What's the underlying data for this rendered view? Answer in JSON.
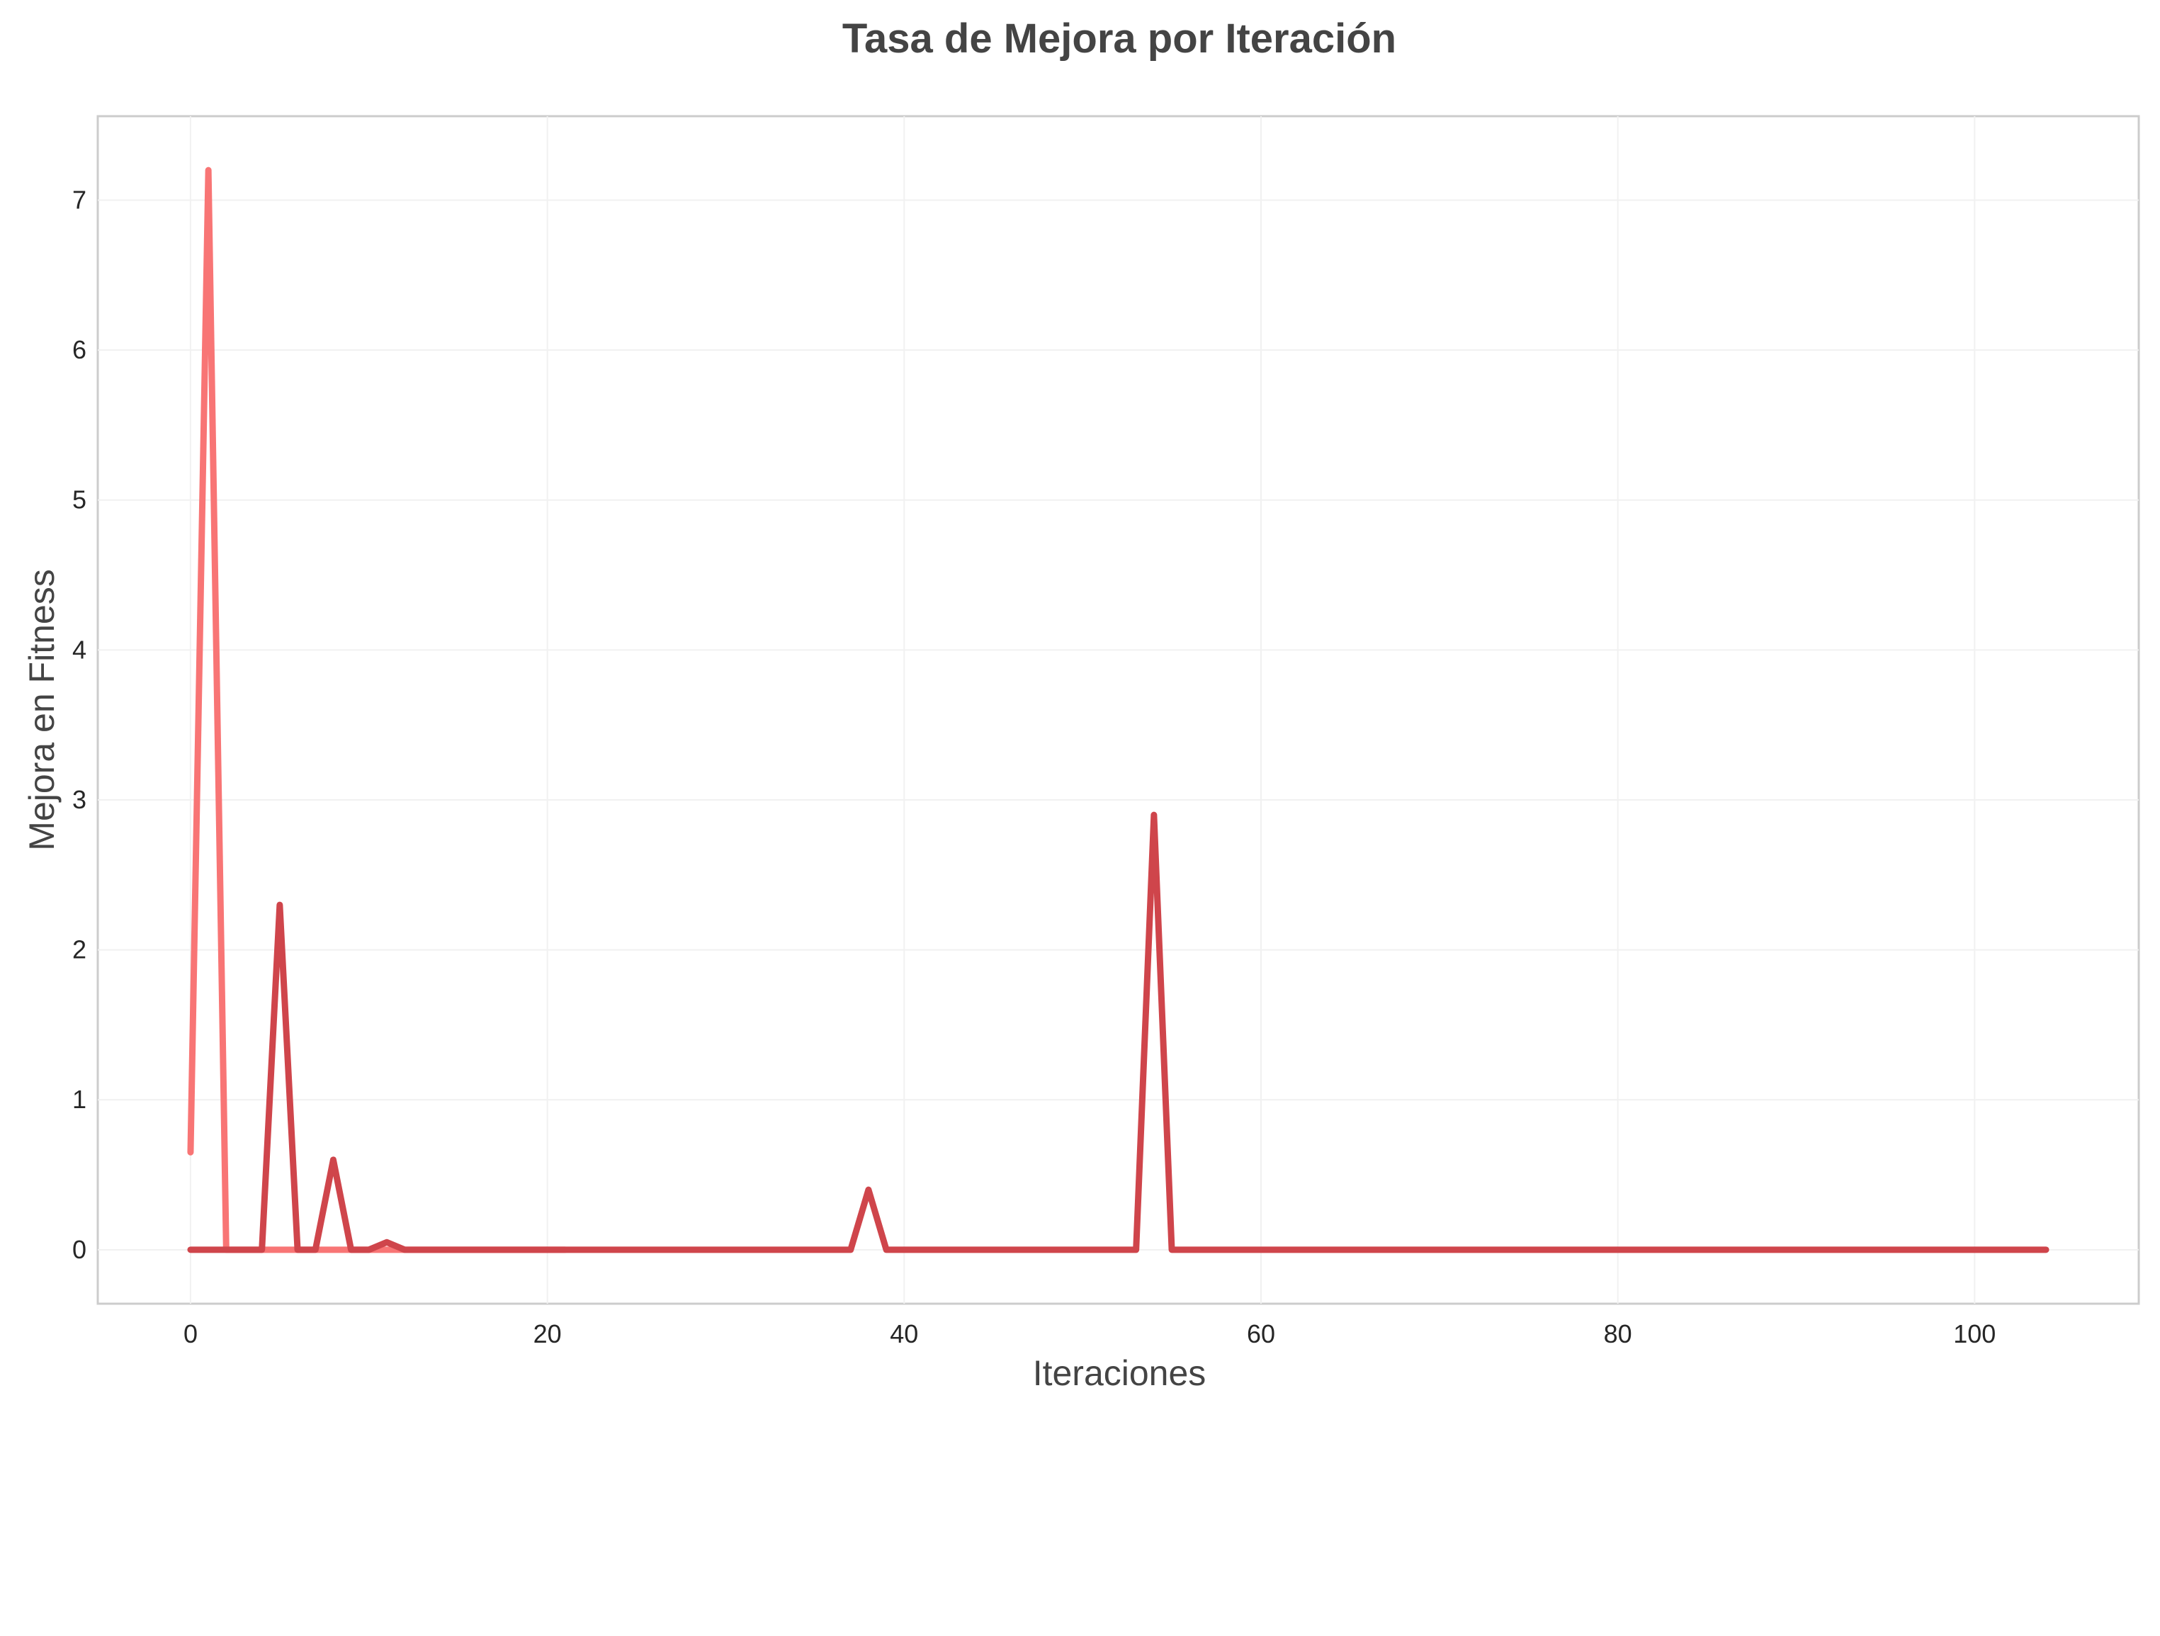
{
  "chart_data": {
    "type": "line",
    "title": "Tasa de Mejora por Iteración",
    "xlabel": "Iteraciones",
    "ylabel": "Mejora en Fitness",
    "xlim": [
      -5.2,
      109.2
    ],
    "ylim": [
      -0.36,
      7.56
    ],
    "xticks": [
      0,
      20,
      40,
      60,
      80,
      100
    ],
    "yticks": [
      0,
      1,
      2,
      3,
      4,
      5,
      6,
      7
    ],
    "grid": true,
    "legend": "none",
    "series": [
      {
        "color": "#f87575",
        "x": [
          0,
          1,
          2,
          3,
          4,
          5,
          6,
          7,
          8,
          9,
          10,
          11,
          12,
          13,
          14,
          15,
          16,
          17,
          18,
          19,
          20,
          21
        ],
        "y": [
          0.65,
          7.2,
          0,
          0,
          0,
          0,
          0,
          0,
          0,
          0,
          0,
          0,
          0,
          0,
          0,
          0,
          0,
          0,
          0,
          0,
          0,
          0
        ]
      },
      {
        "color": "#cf454b",
        "x": [
          0,
          4,
          5,
          6,
          7,
          8,
          9,
          10,
          11,
          12,
          37,
          38,
          39,
          53,
          54,
          55,
          104
        ],
        "y": [
          0,
          0,
          2.3,
          0,
          0,
          0.6,
          0,
          0,
          0.05,
          0,
          0,
          0.4,
          0,
          0,
          2.9,
          0,
          0
        ]
      }
    ]
  }
}
